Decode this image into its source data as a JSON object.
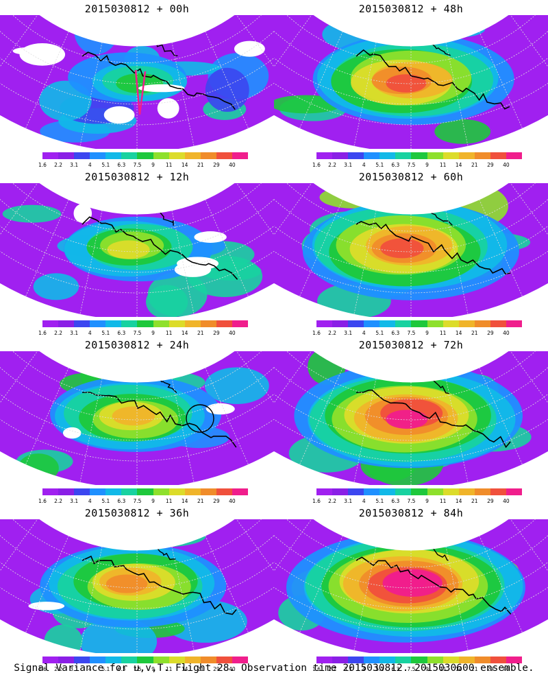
{
  "panels": [
    {
      "title": "2015030812 + 00h",
      "intensity": 0.15,
      "flight_track": true,
      "circle": false
    },
    {
      "title": "2015030812 + 48h",
      "intensity": 0.7,
      "flight_track": false,
      "circle": false
    },
    {
      "title": "2015030812 + 12h",
      "intensity": 0.35,
      "flight_track": false,
      "circle": false
    },
    {
      "title": "2015030812 + 60h",
      "intensity": 0.8,
      "flight_track": false,
      "circle": false
    },
    {
      "title": "2015030812 + 24h",
      "intensity": 0.5,
      "flight_track": false,
      "circle": true
    },
    {
      "title": "2015030812 + 72h",
      "intensity": 0.88,
      "flight_track": false,
      "circle": false
    },
    {
      "title": "2015030812 + 36h",
      "intensity": 0.6,
      "flight_track": false,
      "circle": false
    },
    {
      "title": "2015030812 + 84h",
      "intensity": 0.95,
      "flight_track": false,
      "circle": false
    }
  ],
  "colorbar": {
    "colors": [
      "#a020f0",
      "#8a1fe6",
      "#3c46f0",
      "#1f90ff",
      "#11b9e8",
      "#18d2a0",
      "#1ec83c",
      "#8ee02c",
      "#dcdc2a",
      "#f0b42a",
      "#f08c2a",
      "#f0503c",
      "#f01e8c"
    ],
    "labels": [
      "1.6",
      "2.2",
      "3.1",
      "4",
      "5.1",
      "6.3",
      "7.5",
      "9",
      "11",
      "14",
      "21",
      "29",
      "40"
    ]
  },
  "footer": "Signal Variance for u,v,T. Flight 28. Observation time 2015030812. 2015030600 ensemble."
}
